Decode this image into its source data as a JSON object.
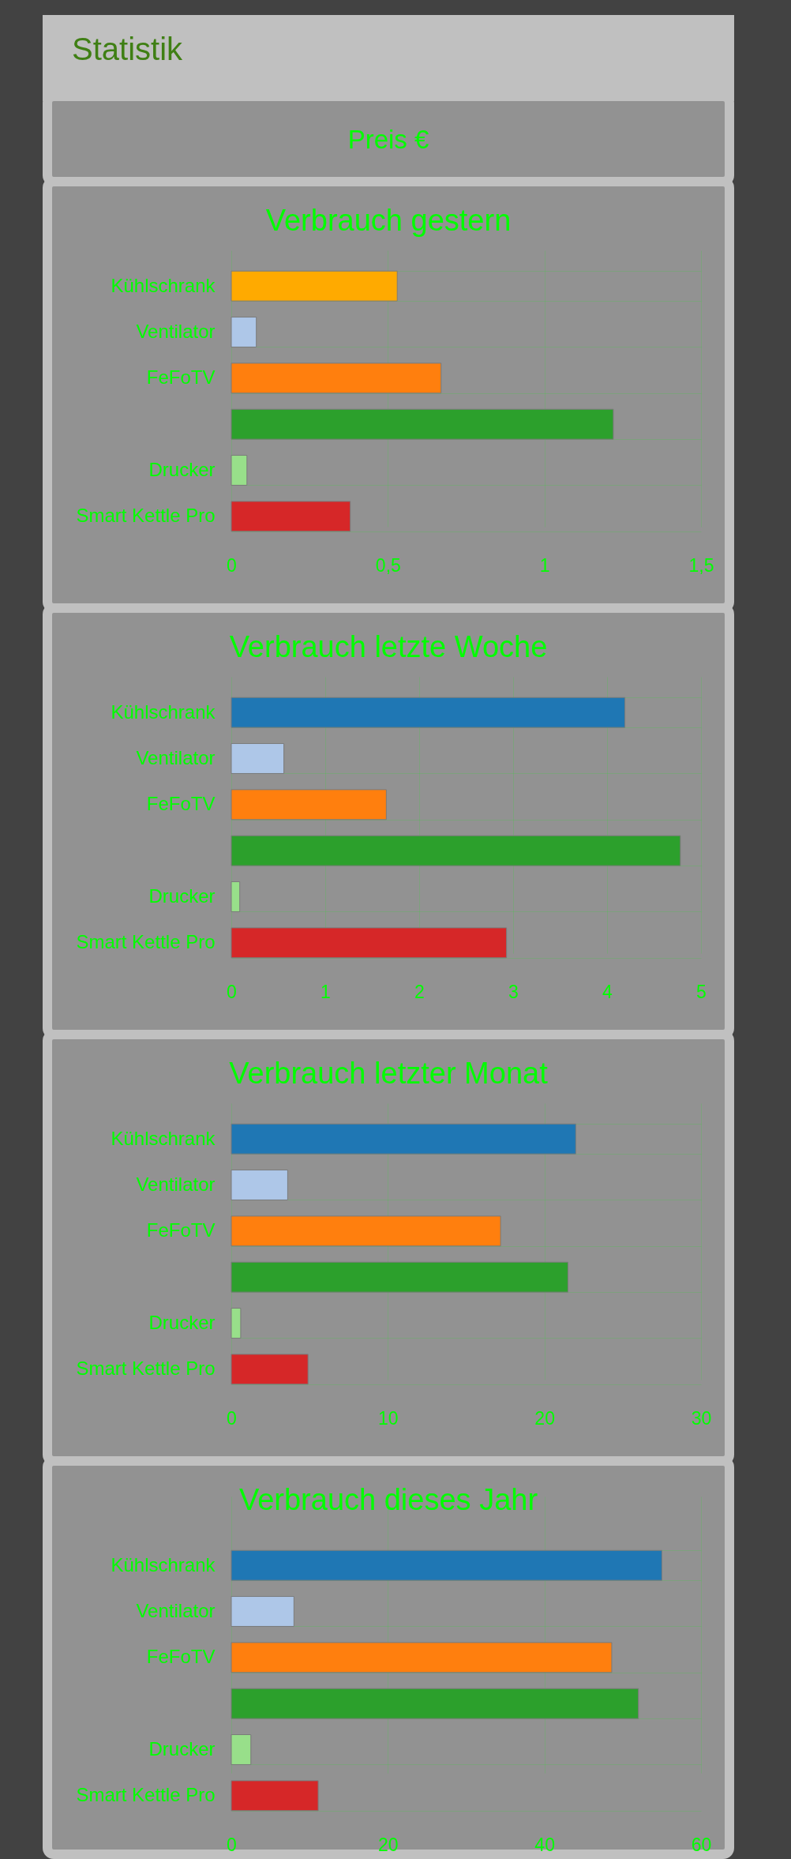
{
  "chart_data": [
    {
      "type": "other",
      "title": "Statistik",
      "annotations": [
        "Preis €"
      ]
    },
    {
      "type": "bar",
      "orientation": "horizontal",
      "title": "Verbrauch gestern",
      "categories": [
        "Kühlschrank",
        "Ventilator",
        "FeFoTV",
        null,
        "Drucker",
        "Smart Kettle Pro"
      ],
      "values": [
        0.53,
        0.08,
        0.67,
        1.22,
        0.05,
        0.38
      ],
      "colors": [
        "#ffaa00",
        "#aec7e8",
        "#ff7f0e",
        "#2ca02c",
        "#98df8a",
        "#d62728"
      ],
      "xlim": [
        0,
        1.5
      ],
      "xticks": [
        0,
        {
          "value": 0.5,
          "label": "0,5"
        },
        1,
        {
          "value": 1.5,
          "label": "1,5"
        }
      ],
      "grid": true
    },
    {
      "type": "bar",
      "orientation": "horizontal",
      "title": "Verbrauch letzte Woche",
      "categories": [
        "Kühlschrank",
        "Ventilator",
        "FeFoTV",
        null,
        "Drucker",
        "Smart Kettle Pro"
      ],
      "values": [
        4.19,
        0.56,
        1.65,
        4.78,
        0.09,
        2.93
      ],
      "colors": [
        "#1f77b4",
        "#aec7e8",
        "#ff7f0e",
        "#2ca02c",
        "#98df8a",
        "#d62728"
      ],
      "xlim": [
        0,
        5
      ],
      "xticks": [
        0,
        1,
        2,
        3,
        4,
        5
      ],
      "grid": true
    },
    {
      "type": "bar",
      "orientation": "horizontal",
      "title": "Verbrauch letzter Monat",
      "categories": [
        "Kühlschrank",
        "Ventilator",
        "FeFoTV",
        null,
        "Drucker",
        "Smart Kettle Pro"
      ],
      "values": [
        22.0,
        3.6,
        17.2,
        21.5,
        0.6,
        4.9
      ],
      "colors": [
        "#1f77b4",
        "#aec7e8",
        "#ff7f0e",
        "#2ca02c",
        "#98df8a",
        "#d62728"
      ],
      "xlim": [
        0,
        30
      ],
      "xticks": [
        0,
        10,
        20,
        30
      ],
      "grid": true
    },
    {
      "type": "bar",
      "orientation": "horizontal",
      "title": "Verbrauch dieses Jahr",
      "categories": [
        "Kühlschrank",
        "Ventilator",
        "FeFoTV",
        null,
        "Drucker",
        "Smart Kettle Pro"
      ],
      "values": [
        55.0,
        8.0,
        48.6,
        52.0,
        2.5,
        11.1
      ],
      "colors": [
        "#1f77b4",
        "#aec7e8",
        "#ff7f0e",
        "#2ca02c",
        "#98df8a",
        "#d62728"
      ],
      "xlim": [
        0,
        60
      ],
      "xticks": [
        0,
        20,
        40,
        60
      ],
      "grid": true
    }
  ]
}
